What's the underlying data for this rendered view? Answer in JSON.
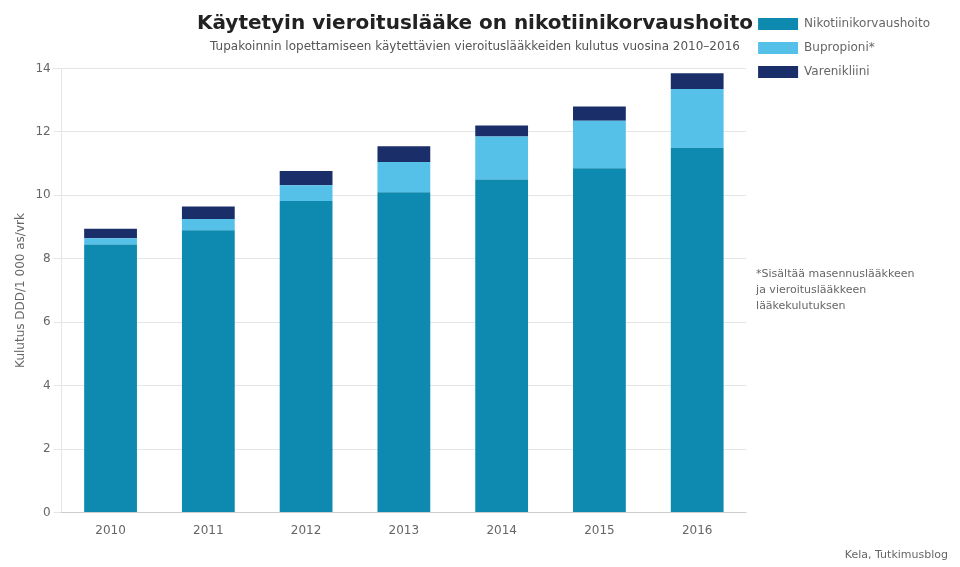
{
  "chart_data": {
    "type": "bar",
    "title": "Käytetyin vieroituslääke on nikotiinikorvaushoito",
    "subtitle": "Tupakoinnin lopettamiseen käytettävien vieroituslääkkeiden kulutus vuosina 2010–2016",
    "y_label": "Kulutus DDD/1 000 as/vrk",
    "categories": [
      "2010",
      "2011",
      "2012",
      "2013",
      "2014",
      "2015",
      "2016"
    ],
    "series": [
      {
        "name": "Nikotiinikorvaushoito",
        "color": "#0e8ab0",
        "values": [
          8.45,
          8.9,
          9.82,
          10.1,
          10.5,
          10.85,
          11.5
        ]
      },
      {
        "name": "Bupropioni*",
        "color": "#55c0e8",
        "values": [
          0.2,
          0.35,
          0.5,
          0.95,
          1.35,
          1.5,
          1.85
        ]
      },
      {
        "name": "Varenikliini",
        "color": "#1a2f6a",
        "values": [
          0.3,
          0.4,
          0.45,
          0.5,
          0.35,
          0.45,
          0.5
        ]
      }
    ],
    "stacked": true,
    "ylim": [
      0,
      14
    ],
    "yticks": [
      0,
      2,
      4,
      6,
      8,
      10,
      12,
      14
    ],
    "grid": true,
    "legend": "right",
    "annotations": [
      "*Sisältää masennuslääkkeen\nja vieroituslääkkeen\nlääkekulutuksen",
      "Kela, Tutkimusblog"
    ]
  }
}
